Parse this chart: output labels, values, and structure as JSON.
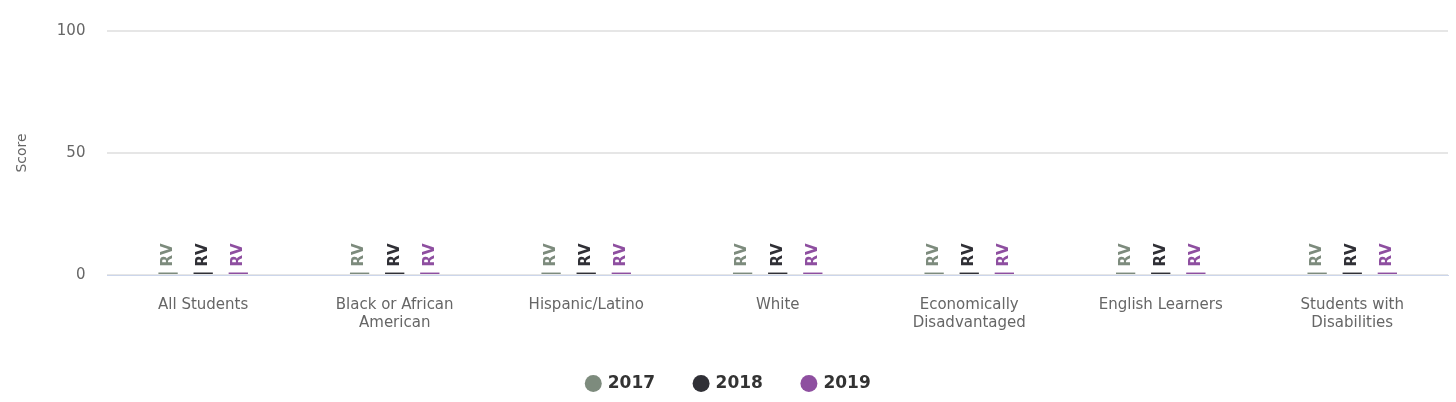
{
  "chart_data": {
    "type": "bar",
    "ylabel": "Score",
    "categories": [
      "All Students",
      "Black or African American",
      "Hispanic/Latino",
      "White",
      "Economically Disadvantaged",
      "English Learners",
      "Students with Disabilities"
    ],
    "series": [
      {
        "name": "2017",
        "color": "#7d8b7d",
        "values": [
          1,
          1,
          1,
          1,
          1,
          1,
          1
        ],
        "value_labels": [
          "RV",
          "RV",
          "RV",
          "RV",
          "RV",
          "RV",
          "RV"
        ]
      },
      {
        "name": "2018",
        "color": "#303036",
        "values": [
          1,
          1,
          1,
          1,
          1,
          1,
          1
        ],
        "value_labels": [
          "RV",
          "RV",
          "RV",
          "RV",
          "RV",
          "RV",
          "RV"
        ]
      },
      {
        "name": "2019",
        "color": "#8e4fa0",
        "values": [
          1,
          1,
          1,
          1,
          1,
          1,
          1
        ],
        "value_labels": [
          "RV",
          "RV",
          "RV",
          "RV",
          "RV",
          "RV",
          "RV"
        ]
      }
    ],
    "ylim": [
      0,
      100
    ],
    "yticks": [
      0,
      50,
      100
    ],
    "grid": "y",
    "legend": "bottom"
  }
}
